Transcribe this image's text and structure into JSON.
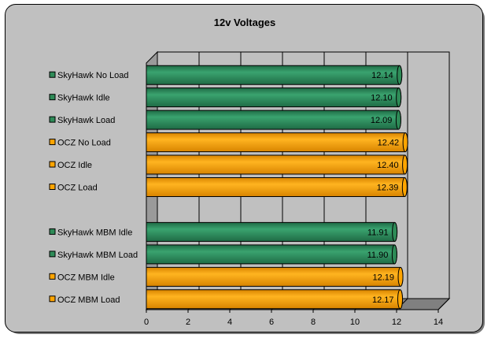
{
  "chart_data": {
    "type": "bar",
    "orientation": "horizontal",
    "title": "12v Voltages",
    "xlabel": "",
    "ylabel": "",
    "xlim": [
      0,
      14
    ],
    "xticks": [
      0,
      2,
      4,
      6,
      8,
      10,
      12,
      14
    ],
    "grid": true,
    "legend": "none",
    "bars": [
      {
        "label": "SkyHawk No Load",
        "value": 12.14,
        "value_label": "12.14",
        "color": "#2e8b57"
      },
      {
        "label": "SkyHawk Idle",
        "value": 12.1,
        "value_label": "12.10",
        "color": "#2e8b57"
      },
      {
        "label": "SkyHawk Load",
        "value": 12.09,
        "value_label": "12.09",
        "color": "#2e8b57"
      },
      {
        "label": "OCZ No Load",
        "value": 12.42,
        "value_label": "12.42",
        "color": "#ffa500"
      },
      {
        "label": "OCZ Idle",
        "value": 12.4,
        "value_label": "12.40",
        "color": "#ffa500"
      },
      {
        "label": "OCZ Load",
        "value": 12.39,
        "value_label": "12.39",
        "color": "#ffa500"
      },
      {
        "label": "",
        "value": null,
        "value_label": "",
        "color": ""
      },
      {
        "label": "SkyHawk MBM Idle",
        "value": 11.91,
        "value_label": "11.91",
        "color": "#2e8b57"
      },
      {
        "label": "SkyHawk MBM Load",
        "value": 11.9,
        "value_label": "11.90",
        "color": "#2e8b57"
      },
      {
        "label": "OCZ MBM Idle",
        "value": 12.19,
        "value_label": "12.19",
        "color": "#ffa500"
      },
      {
        "label": "OCZ MBM Load",
        "value": 12.17,
        "value_label": "12.17",
        "color": "#ffa500"
      }
    ]
  }
}
